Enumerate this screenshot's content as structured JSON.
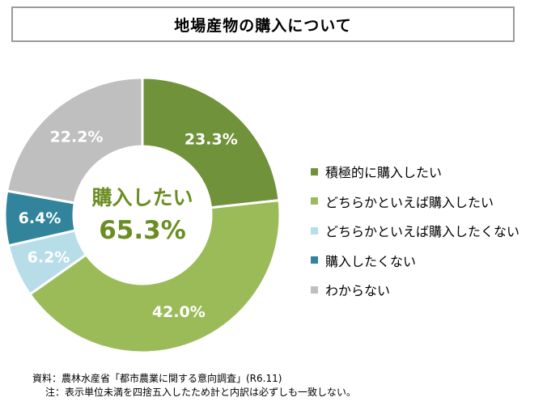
{
  "title": "地場産物の購入について",
  "center_label": "購入したい",
  "center_value": "65.3%",
  "chart_data": {
    "type": "pie",
    "title": "地場産物の購入について",
    "slices": [
      {
        "label": "積極的に購入したい",
        "value": 23.3,
        "value_label": "23.3%",
        "color": "#70923b"
      },
      {
        "label": "どちらかといえば購入したい",
        "value": 42.0,
        "value_label": "42.0%",
        "color": "#9bbb59"
      },
      {
        "label": "どちらかといえば購入したくない",
        "value": 6.2,
        "value_label": "6.2%",
        "color": "#b7dde8"
      },
      {
        "label": "購入したくない",
        "value": 6.4,
        "value_label": "6.4%",
        "color": "#31849b"
      },
      {
        "label": "わからない",
        "value": 22.2,
        "value_label": "22.2%",
        "color": "#bfbfbf"
      }
    ],
    "legend_placement": "right"
  },
  "footnote": {
    "source": "資料：農林水産省「都市農業に関する意向調査」(R6.11)",
    "note": "注：表示単位未満を四捨五入したため計と内訳は必ずしも一致しない。"
  }
}
